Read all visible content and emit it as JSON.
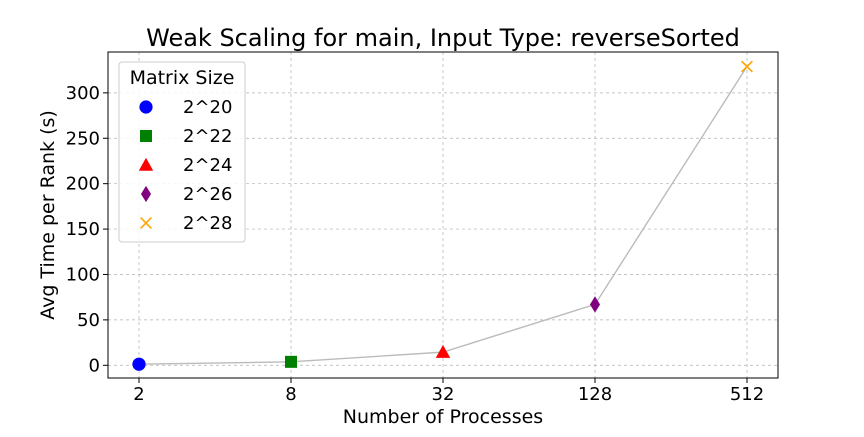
{
  "chart_data": {
    "type": "scatter",
    "title": "Weak Scaling for main, Input Type: reverseSorted",
    "xlabel": "Number of Processes",
    "ylabel": "Avg Time per Rank (s)",
    "x_scale": "log2",
    "x_ticks": [
      "2",
      "8",
      "32",
      "128",
      "512"
    ],
    "y_ticks": [
      "0",
      "50",
      "100",
      "150",
      "200",
      "250",
      "300"
    ],
    "ylim": [
      -14,
      345
    ],
    "grid": true,
    "legend": {
      "title": "Matrix Size",
      "placement": "top-left"
    },
    "line_color": "#bbbbbb",
    "series": [
      {
        "name": "2^20",
        "x": 2,
        "y": 1.2,
        "marker": "circle",
        "color": "#0000ff"
      },
      {
        "name": "2^22",
        "x": 8,
        "y": 3.8,
        "marker": "square",
        "color": "#008000"
      },
      {
        "name": "2^24",
        "x": 32,
        "y": 14.5,
        "marker": "triangle",
        "color": "#ff0000"
      },
      {
        "name": "2^26",
        "x": 128,
        "y": 67,
        "marker": "diamond",
        "color": "#800080"
      },
      {
        "name": "2^28",
        "x": 512,
        "y": 329,
        "marker": "x",
        "color": "#ffa500"
      }
    ]
  }
}
